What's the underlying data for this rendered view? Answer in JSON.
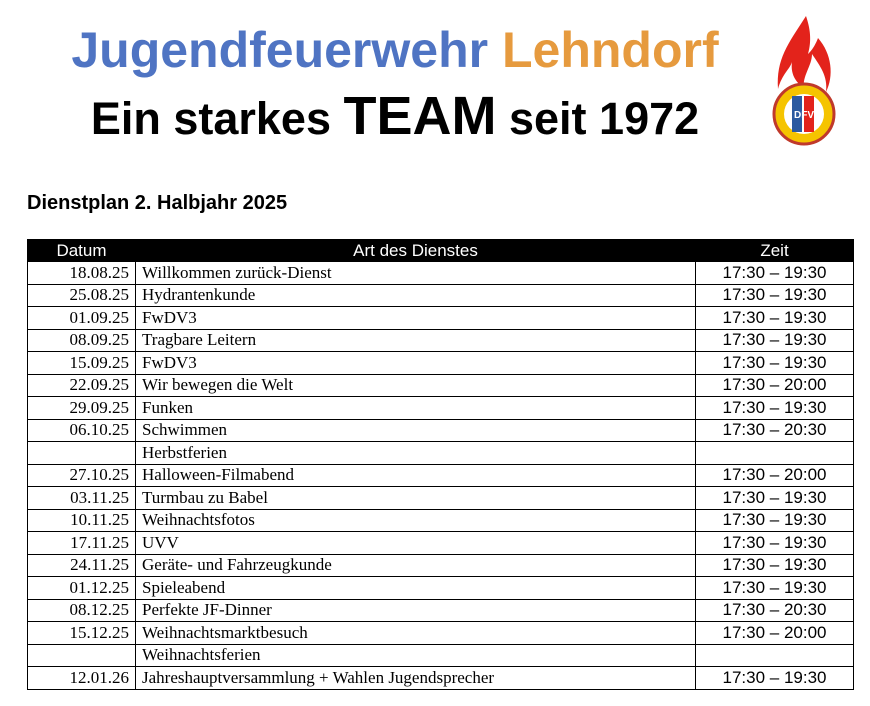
{
  "header": {
    "title_part1": "Jugendfeuerwehr",
    "title_part2": "Lehndorf",
    "subtitle_part1": "Ein starkes",
    "subtitle_part2": "TEAM",
    "subtitle_part3": "seit 1972",
    "logo_text": "DFV"
  },
  "plan_title": "Dienstplan 2. Halbjahr 2025",
  "table": {
    "columns": [
      "Datum",
      "Art des Dienstes",
      "Zeit"
    ],
    "rows": [
      {
        "datum": "18.08.25",
        "art": "Willkommen zurück-Dienst",
        "zeit": "17:30 – 19:30"
      },
      {
        "datum": "25.08.25",
        "art": "Hydrantenkunde",
        "zeit": "17:30 – 19:30"
      },
      {
        "datum": "01.09.25",
        "art": "FwDV3",
        "zeit": "17:30 – 19:30"
      },
      {
        "datum": "08.09.25",
        "art": "Tragbare Leitern",
        "zeit": "17:30 – 19:30"
      },
      {
        "datum": "15.09.25",
        "art": "FwDV3",
        "zeit": "17:30 – 19:30"
      },
      {
        "datum": "22.09.25",
        "art": "Wir bewegen die Welt",
        "zeit": "17:30 – 20:00"
      },
      {
        "datum": "29.09.25",
        "art": "Funken",
        "zeit": "17:30 – 19:30"
      },
      {
        "datum": "06.10.25",
        "art": "Schwimmen",
        "zeit": "17:30 – 20:30"
      },
      {
        "art": "Herbstferien"
      },
      {
        "datum": "27.10.25",
        "art": "Halloween-Filmabend",
        "zeit": "17:30 – 20:00"
      },
      {
        "datum": "03.11.25",
        "art": "Turmbau zu Babel",
        "zeit": "17:30 – 19:30"
      },
      {
        "datum": "10.11.25",
        "art": "Weihnachtsfotos",
        "zeit": "17:30 – 19:30"
      },
      {
        "datum": "17.11.25",
        "art": "UVV",
        "zeit": "17:30 – 19:30"
      },
      {
        "datum": "24.11.25",
        "art": "Geräte- und Fahrzeugkunde",
        "zeit": "17:30 – 19:30"
      },
      {
        "datum": "01.12.25",
        "art": "Spieleabend",
        "zeit": "17:30 – 19:30"
      },
      {
        "datum": "08.12.25",
        "art": "Perfekte JF-Dinner",
        "zeit": "17:30 – 20:30"
      },
      {
        "datum": "15.12.25",
        "art": "Weihnachtsmarktbesuch",
        "zeit": "17:30 – 20:00"
      },
      {
        "art": "Weihnachtsferien"
      },
      {
        "datum": "12.01.26",
        "art": "Jahreshauptversammlung + Wahlen Jugendsprecher",
        "zeit": "17:30 – 19:30"
      }
    ]
  }
}
